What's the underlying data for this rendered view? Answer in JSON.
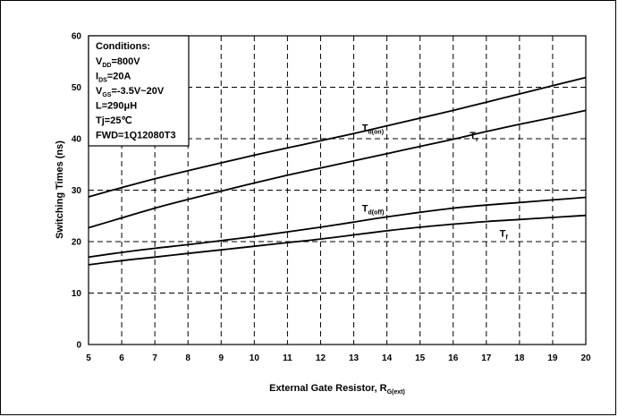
{
  "chart_data": {
    "type": "line",
    "xlabel": "External Gate Resistor, R",
    "xlabel_sub": "G(ext)",
    "ylabel": "Switching Times (ns)",
    "xlim": [
      5,
      20
    ],
    "ylim": [
      0,
      60
    ],
    "xticks": [
      5,
      6,
      7,
      8,
      9,
      10,
      11,
      12,
      13,
      14,
      15,
      16,
      17,
      18,
      19,
      20
    ],
    "yticks": [
      0,
      10,
      20,
      30,
      40,
      50,
      60
    ],
    "grid": "dashed",
    "conditions": {
      "title": "Conditions:",
      "lines": [
        {
          "main": "V",
          "sub": "DD",
          "rest": "=800V"
        },
        {
          "main": "I",
          "sub": "DS",
          "rest": "=20A"
        },
        {
          "main": "V",
          "sub": "GS",
          "rest": "=-3.5V~20V"
        },
        {
          "main": "L=290μH",
          "sub": "",
          "rest": ""
        },
        {
          "main": "Tj=25℃",
          "sub": "",
          "rest": ""
        },
        {
          "main": "FWD=1Q12080T3",
          "sub": "",
          "rest": ""
        }
      ]
    },
    "series": [
      {
        "name": "T",
        "sub": "d(on)",
        "label_at": [
          13.25,
          41.5
        ],
        "x": [
          5,
          6,
          7,
          8,
          9,
          10,
          11,
          12,
          13,
          14,
          15,
          16,
          17,
          18,
          19,
          20
        ],
        "y": [
          28.7,
          30.5,
          32.2,
          33.8,
          35.3,
          36.8,
          38.2,
          39.6,
          41.0,
          42.5,
          44.0,
          45.5,
          47.1,
          48.7,
          50.3,
          51.9
        ]
      },
      {
        "name": "T",
        "sub": "r",
        "label_at": [
          16.5,
          40.0
        ],
        "x": [
          5,
          6,
          7,
          8,
          9,
          10,
          11,
          12,
          13,
          14,
          15,
          16,
          17,
          18,
          19,
          20
        ],
        "y": [
          22.7,
          24.6,
          26.5,
          28.2,
          29.8,
          31.4,
          32.9,
          34.3,
          35.7,
          37.1,
          38.5,
          39.9,
          41.4,
          42.8,
          44.1,
          45.5
        ]
      },
      {
        "name": "T",
        "sub": "d(off)",
        "label_at": [
          13.25,
          25.8
        ],
        "x": [
          5,
          6,
          7,
          8,
          9,
          10,
          11,
          12,
          13,
          14,
          15,
          16,
          17,
          18,
          19,
          20
        ],
        "y": [
          17.0,
          17.9,
          18.7,
          19.4,
          20.2,
          21.0,
          21.9,
          22.8,
          23.8,
          24.8,
          25.7,
          26.5,
          27.1,
          27.6,
          28.1,
          28.6
        ]
      },
      {
        "name": "T",
        "sub": "f",
        "label_at": [
          17.4,
          21.0
        ],
        "x": [
          5,
          6,
          7,
          8,
          9,
          10,
          11,
          12,
          13,
          14,
          15,
          16,
          17,
          18,
          19,
          20
        ],
        "y": [
          15.5,
          16.3,
          17.0,
          17.7,
          18.4,
          19.1,
          19.8,
          20.5,
          21.3,
          22.1,
          22.8,
          23.4,
          23.9,
          24.3,
          24.7,
          25.1
        ]
      }
    ]
  }
}
